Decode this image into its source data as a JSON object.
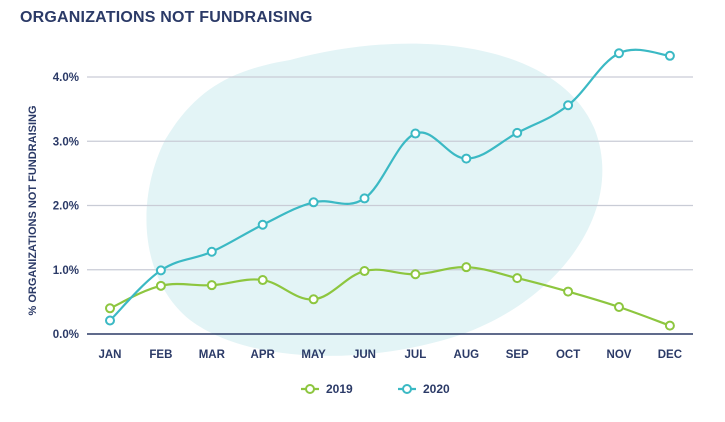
{
  "chart_data": {
    "type": "line",
    "title": "ORGANIZATIONS NOT FUNDRAISING",
    "xlabel": "",
    "ylabel": "% ORGANIZATIONS NOT FUNDRAISING",
    "categories": [
      "JAN",
      "FEB",
      "MAR",
      "APR",
      "MAY",
      "JUN",
      "JUL",
      "AUG",
      "SEP",
      "OCT",
      "NOV",
      "DEC"
    ],
    "yticks": [
      "0.0%",
      "1.0%",
      "2.0%",
      "3.0%",
      "4.0%"
    ],
    "ylim": [
      0,
      4.0
    ],
    "grid": true,
    "legend_position": "bottom-center",
    "series": [
      {
        "name": "2019",
        "color": "#8dc63f",
        "values": [
          0.4,
          0.75,
          0.76,
          0.84,
          0.54,
          0.98,
          0.93,
          1.04,
          0.87,
          0.66,
          0.42,
          0.13
        ]
      },
      {
        "name": "2020",
        "color": "#3bb9c4",
        "values": [
          0.21,
          0.99,
          1.28,
          1.7,
          2.05,
          2.11,
          3.12,
          2.73,
          3.13,
          3.56,
          4.37,
          4.33
        ]
      }
    ]
  },
  "colors": {
    "title": "#2b3a67",
    "grid": "#c9ccd6",
    "blob": "#e3f4f6"
  }
}
